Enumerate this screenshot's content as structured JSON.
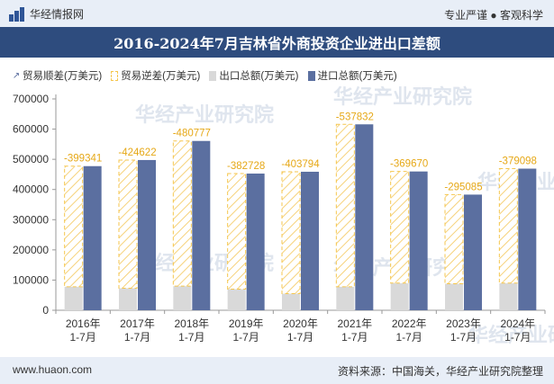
{
  "header": {
    "brand": "华经情报网",
    "tagline": "专业严谨 ● 客观科学"
  },
  "title": "2016-2024年7月吉林省外商投资企业进出口差额",
  "legend": {
    "balance_surplus": "贸易顺差(万美元)",
    "balance_deficit": "贸易逆差(万美元)",
    "exports": "出口总额(万美元)",
    "imports": "进口总额(万美元)"
  },
  "colors": {
    "exports": "#d9d9d9",
    "imports": "#5b6fa0",
    "deficit_border": "#f5c64d",
    "label": "#e6a817",
    "title_bg": "#2e4c7e"
  },
  "watermark": "华经产业研究院",
  "chart_data": {
    "type": "bar",
    "categories": [
      "2016年\n1-7月",
      "2017年\n1-7月",
      "2018年\n1-7月",
      "2019年\n1-7月",
      "2020年\n1-7月",
      "2021年\n1-7月",
      "2022年\n1-7月",
      "2023年\n1-7月",
      "2024年\n1-7月"
    ],
    "series": [
      {
        "name": "出口总额(万美元)",
        "values": [
          78000,
          73000,
          80000,
          70000,
          55000,
          78000,
          90000,
          88000,
          90000
        ]
      },
      {
        "name": "贸易逆差(万美元)",
        "values": [
          -399341,
          -424622,
          -480777,
          -382728,
          -403794,
          -537832,
          -369670,
          -295085,
          -379098
        ]
      },
      {
        "name": "进口总额(万美元)",
        "values": [
          477341,
          497622,
          560777,
          452728,
          458794,
          615832,
          459670,
          383085,
          469098
        ]
      }
    ],
    "labels": [
      "-399341",
      "-424622",
      "-480777",
      "-382728",
      "-403794",
      "-537832",
      "-369670",
      "-295085",
      "-379098"
    ],
    "yticks": [
      0,
      100000,
      200000,
      300000,
      400000,
      500000,
      600000,
      700000
    ],
    "ylim": [
      0,
      700000
    ],
    "grid": false,
    "legend_position": "top-left"
  },
  "footer": {
    "site": "www.huaon.com",
    "source": "资料来源：中国海关，华经产业研究院整理"
  }
}
